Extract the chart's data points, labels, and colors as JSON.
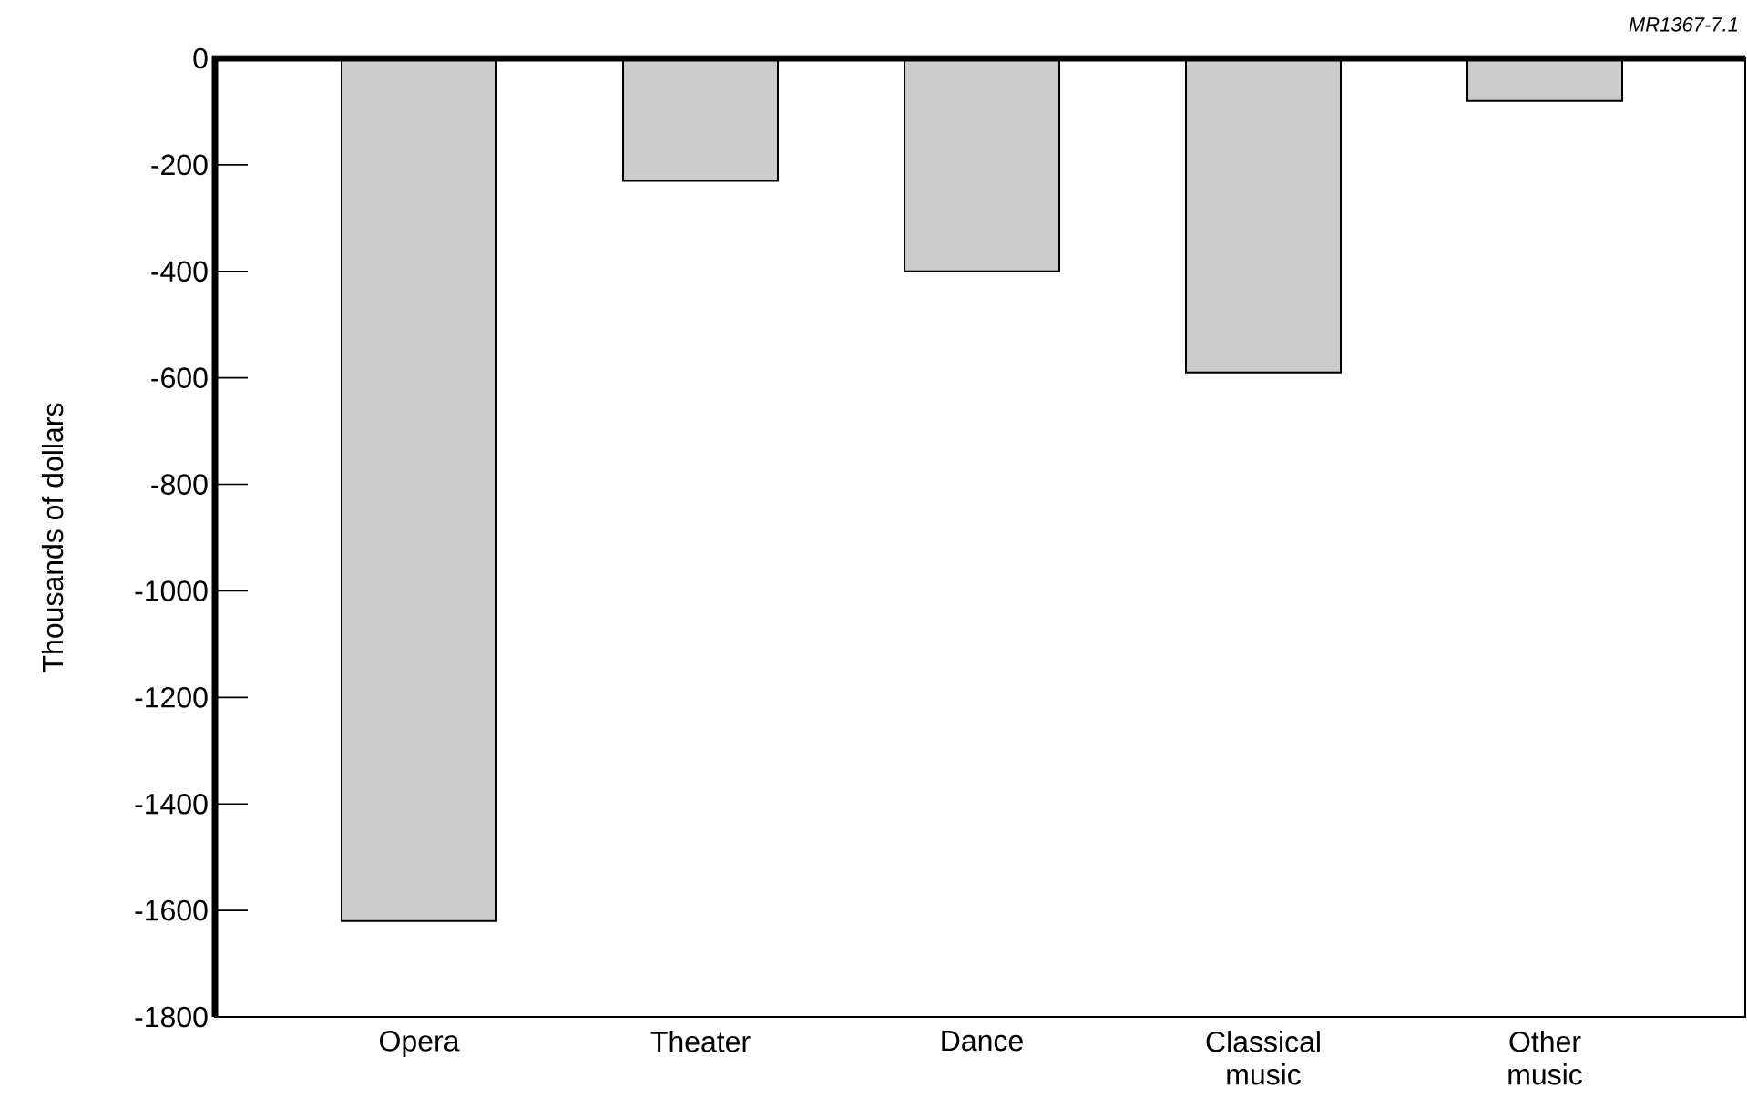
{
  "chart_data": {
    "type": "bar",
    "ylabel": "Thousands of dollars",
    "categories": [
      "Opera",
      "Theater",
      "Dance",
      "Classical music",
      "Other music"
    ],
    "values": [
      -1620,
      -230,
      -400,
      -590,
      -80
    ],
    "color": "#cccccc",
    "ylim": [
      -1800,
      0
    ],
    "yticks": [
      -1800,
      -1600,
      -1400,
      -1200,
      -1000,
      -800,
      -600,
      -400,
      -200,
      0
    ],
    "annotations": [
      "MR1367-7.1"
    ]
  }
}
